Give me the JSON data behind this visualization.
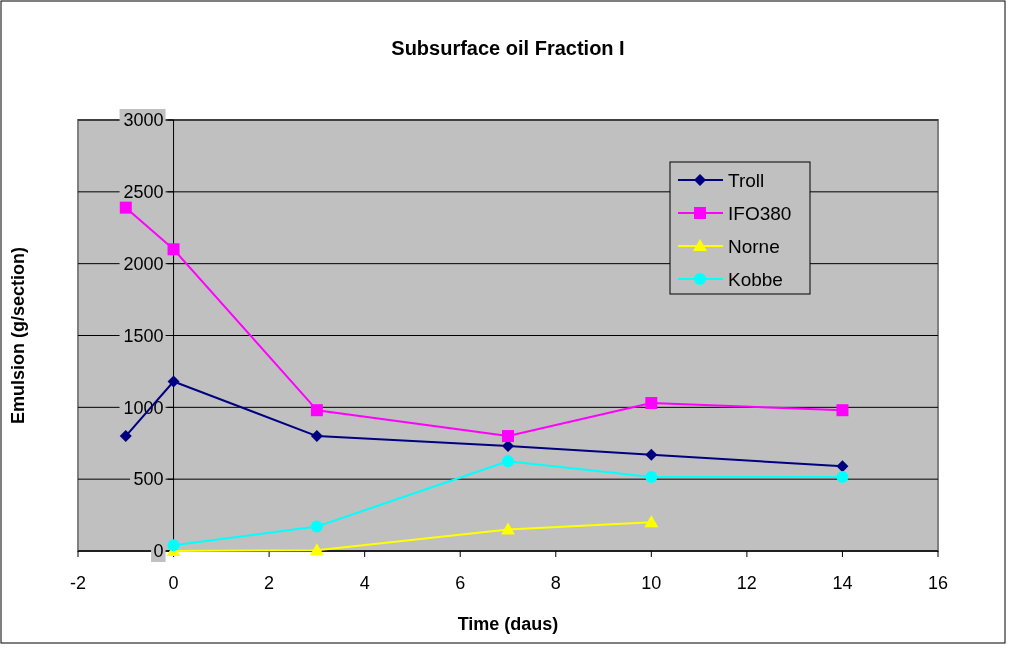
{
  "chart_data": {
    "type": "line",
    "title": "Subsurface oil Fraction I",
    "xlabel": "Time (daus)",
    "ylabel": "Emulsion (g/section)",
    "xlim": [
      -2,
      16
    ],
    "xticks": [
      -2,
      0,
      2,
      4,
      6,
      8,
      10,
      12,
      14,
      16
    ],
    "ylim": [
      0,
      3000
    ],
    "yticks": [
      0,
      500,
      1000,
      1500,
      2000,
      2500,
      3000
    ],
    "grid": "y",
    "legend": "top right",
    "series": [
      {
        "name": "Troll",
        "color": "#000080",
        "marker": "diamond",
        "x": [
          -1,
          0,
          3,
          7,
          10,
          14
        ],
        "values": [
          800,
          1180,
          800,
          730,
          670,
          590
        ]
      },
      {
        "name": "IFO380",
        "color": "#ff00ff",
        "marker": "square",
        "x": [
          -1,
          0,
          3,
          7,
          10,
          14
        ],
        "values": [
          2390,
          2100,
          980,
          800,
          1030,
          980
        ]
      },
      {
        "name": "Norne",
        "color": "#ffff00",
        "marker": "triangle",
        "x": [
          0,
          3,
          7,
          10
        ],
        "values": [
          0,
          5,
          150,
          200
        ]
      },
      {
        "name": "Kobbe",
        "color": "#00ffff",
        "marker": "circle",
        "x": [
          0,
          3,
          7,
          10,
          14
        ],
        "values": [
          40,
          170,
          625,
          515,
          515
        ]
      }
    ]
  }
}
